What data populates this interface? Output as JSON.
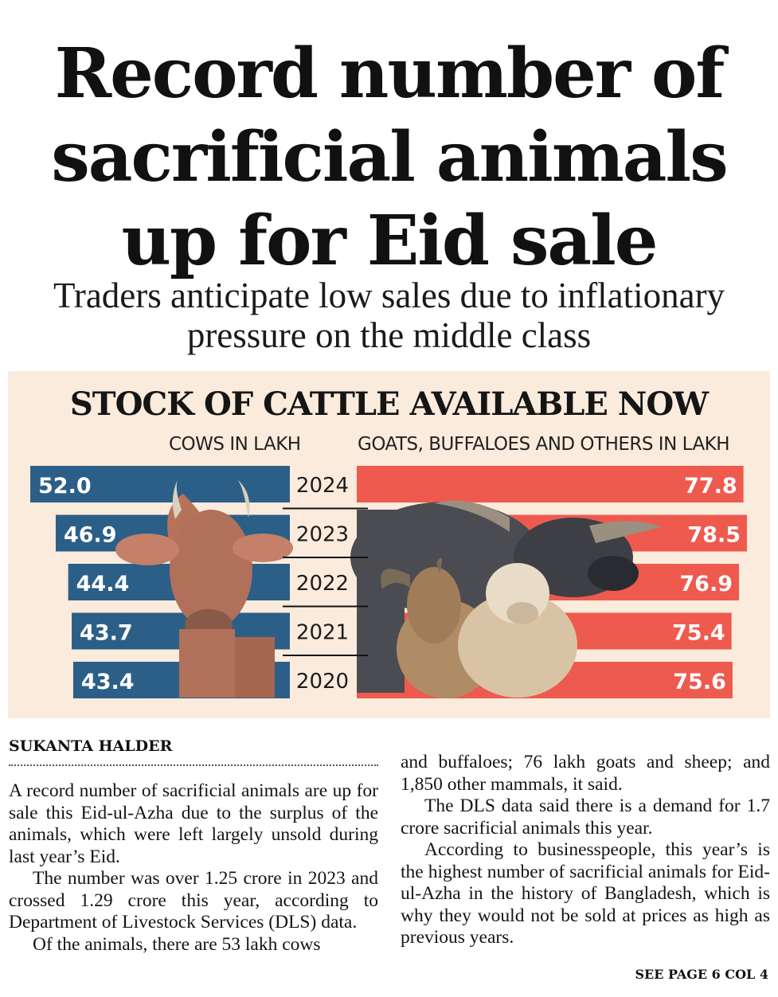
{
  "headline": {
    "line1": "Record number of",
    "line2": "sacrificial animals",
    "line3": "up for Eid sale"
  },
  "deck": {
    "line1": "Traders anticipate low sales due to inflationary",
    "line2": "pressure on the middle class"
  },
  "chart_data": {
    "type": "bar",
    "title": "STOCK OF CATTLE AVAILABLE NOW",
    "categories": [
      "2024",
      "2023",
      "2022",
      "2021",
      "2020"
    ],
    "series": [
      {
        "name": "COWS IN LAKH",
        "values": [
          52.0,
          46.9,
          44.4,
          43.7,
          43.4
        ],
        "color": "#2c5f87",
        "value_labels": [
          "52.0",
          "46.9",
          "44.4",
          "43.7",
          "43.4"
        ]
      },
      {
        "name": "GOATS, BUFFALOES AND OTHERS IN LAKH",
        "values": [
          77.8,
          78.5,
          76.9,
          75.4,
          75.6
        ],
        "color": "#ef5a4f",
        "value_labels": [
          "77.8",
          "78.5",
          "76.9",
          "75.4",
          "75.6"
        ]
      }
    ],
    "legend": "column headers above bars",
    "grid": false,
    "illustration": [
      "cow",
      "buffalo",
      "goat",
      "sheep"
    ]
  },
  "article": {
    "byline": "SUKANTA HALDER",
    "col1": [
      "A record number of sacrificial animals are up for sale this Eid-ul-Azha due to the surplus of the animals, which were left largely unsold during last year’s Eid.",
      "The number was over 1.25 crore in 2023 and crossed 1.29 crore this year, according to Department of Livestock Services (DLS) data.",
      "Of the animals, there are 53 lakh cows"
    ],
    "col2": [
      "and buffaloes; 76 lakh goats and sheep; and 1,850 other mammals, it said.",
      "The DLS data said there is a demand for 1.7 crore sacrificial animals this year.",
      "According to businesspeople, this year’s is the highest number of sacrificial animals for Eid-ul-Azha in the history of Bangladesh, which is why they would not be sold at prices as high as previous years."
    ],
    "jump": "SEE PAGE 6 COL 4"
  }
}
